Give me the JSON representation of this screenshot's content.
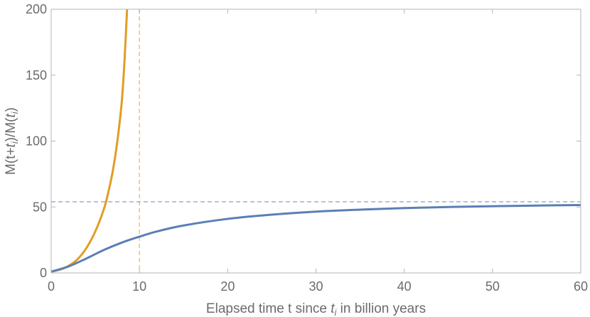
{
  "chart_data": {
    "type": "line",
    "title": "",
    "xlabel_parts": {
      "before": "Elapsed time t since ",
      "var": "t",
      "sub": "i",
      "after": " in billion years"
    },
    "ylabel_parts": {
      "p1": "M(t+",
      "var1": "t",
      "sub1": "i",
      "p2": ")/M(",
      "var2": "t",
      "sub2": "i",
      "p3": ")"
    },
    "xlim": [
      0,
      60
    ],
    "ylim": [
      0,
      200
    ],
    "xticks": [
      0,
      10,
      20,
      30,
      40,
      50,
      60
    ],
    "yticks": [
      0,
      50,
      100,
      150,
      200
    ],
    "xtick_labels": [
      "0",
      "10",
      "20",
      "30",
      "40",
      "50",
      "60"
    ],
    "ytick_labels": [
      "0",
      "50",
      "100",
      "150",
      "200"
    ],
    "grid": false,
    "legend": "none",
    "series": [
      {
        "color": "#e09d25",
        "style": "solid",
        "x": [
          0,
          1,
          2,
          3,
          4,
          5,
          6,
          6.5,
          7,
          7.5,
          8,
          8.3,
          8.6
        ],
        "y": [
          1,
          2.5,
          5.5,
          10.5,
          19,
          31.5,
          49,
          62,
          78,
          100,
          130,
          160,
          200
        ]
      },
      {
        "color": "#5b7fb5",
        "style": "solid",
        "x": [
          0,
          2,
          4,
          6,
          8,
          10,
          12,
          15,
          20,
          25,
          30,
          35,
          40,
          45,
          50,
          55,
          60
        ],
        "y": [
          1,
          5,
          11,
          17.5,
          23,
          27.5,
          31.5,
          36,
          41,
          44.2,
          46.5,
          48,
          49.2,
          50,
          50.6,
          51.1,
          51.5
        ]
      }
    ],
    "reference_lines": [
      {
        "orientation": "vertical",
        "value": 10,
        "color": "#f2c46b",
        "style": "dashed"
      },
      {
        "orientation": "horizontal",
        "value": 54,
        "color": "#9ab0d0",
        "style": "dashed"
      }
    ]
  }
}
